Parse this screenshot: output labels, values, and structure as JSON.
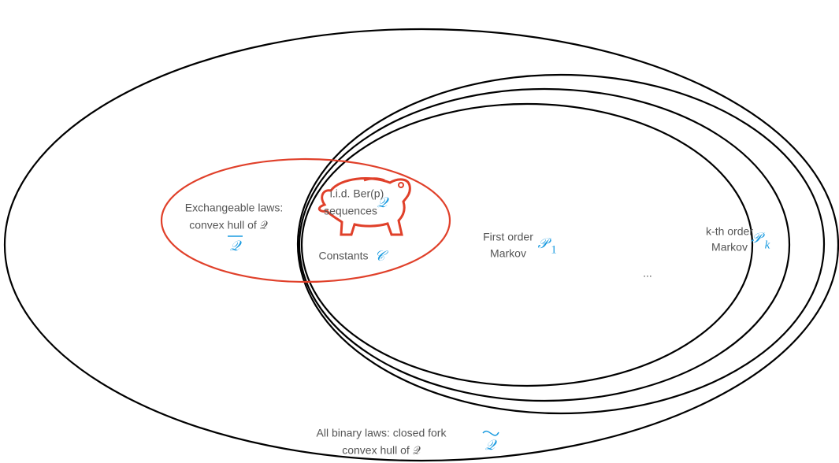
{
  "exchangeable": {
    "lines": [
      "Exchangeable laws:",
      "convex hull of 𝒬"
    ],
    "symbol": "𝒬"
  },
  "iid": {
    "lines": [
      "i.i.d. Ber(p)",
      "sequences"
    ],
    "symbol": "𝒬"
  },
  "constants": {
    "label": "Constants",
    "symbol": "𝒞"
  },
  "first_order": {
    "lines": [
      "First order",
      "Markov"
    ],
    "symbol": "𝒫",
    "subscript": "1"
  },
  "kth_order": {
    "lines": [
      "k-th order",
      "Markov"
    ],
    "symbol": "𝒫",
    "subscript": "k"
  },
  "ellipsis": "...",
  "all_binary": {
    "lines": [
      "All binary laws: closed fork",
      "convex hull of 𝒬"
    ],
    "symbol": "𝒬"
  }
}
